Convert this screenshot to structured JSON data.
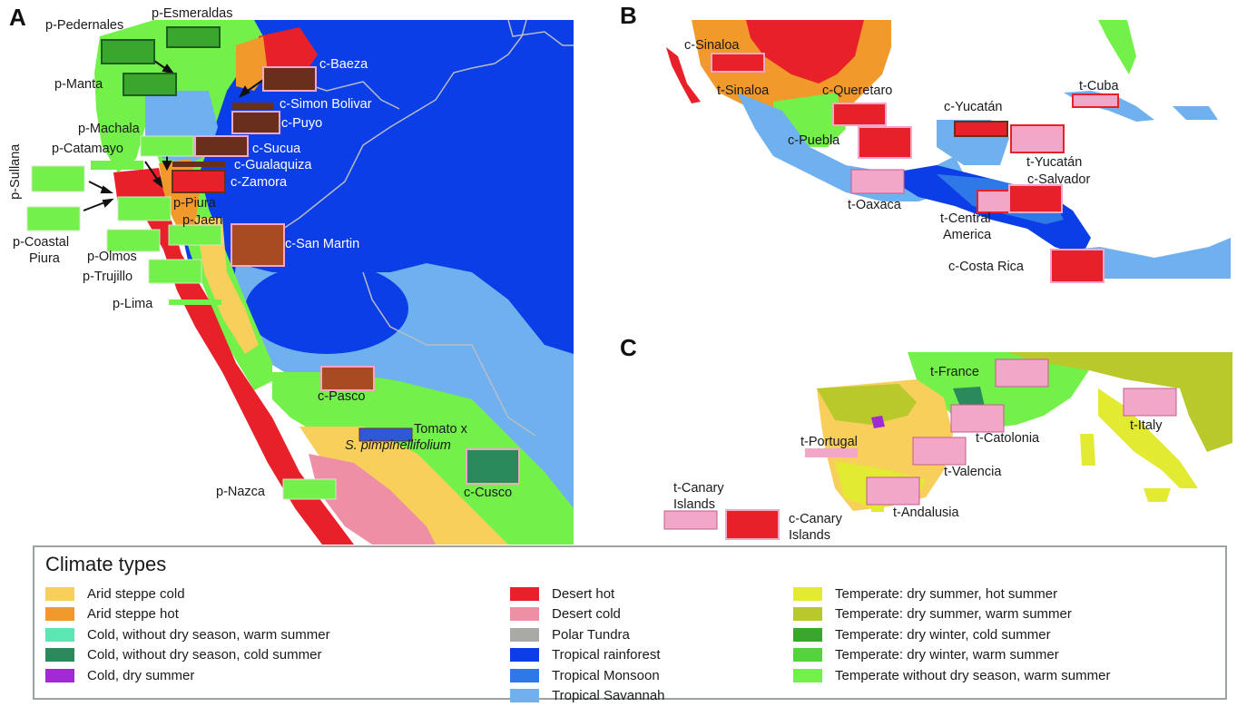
{
  "panels": {
    "a": {
      "letter": "A"
    },
    "b": {
      "letter": "B"
    },
    "c": {
      "letter": "C"
    }
  },
  "colors": {
    "arid_steppe_cold": "#f7cf5a",
    "arid_steppe_hot": "#f19a2b",
    "cold_no_dry_warm": "#5ce6b3",
    "cold_no_dry_cold": "#2a8a5c",
    "cold_dry_summer": "#a02bd6",
    "desert_hot": "#e8202a",
    "desert_cold": "#ef8fa5",
    "polar_tundra": "#a9aaa6",
    "tropical_rainforest": "#0b3ee6",
    "tropical_monsoon": "#2f78e8",
    "tropical_savannah": "#6fb1ee",
    "temp_dry_summer_hot": "#e2ea31",
    "temp_dry_summer_warm": "#b9c92c",
    "temp_dry_winter_cold": "#3aa62c",
    "temp_dry_winter_warm": "#53d43c",
    "temp_no_dry_warm": "#74f04a",
    "tomato_brown": "#6a2e1c",
    "tomato_pink": "#f2a7c8"
  },
  "map_a_labels": {
    "p_esmeraldas": "p-Esmeraldas",
    "p_pedernales": "p-Pedernales",
    "p_manta": "p-Manta",
    "c_baeza": "c-Baeza",
    "c_simon_bolivar": "c-Simon Bolivar",
    "c_puyo": "c-Puyo",
    "p_machala": "p-Machala",
    "p_catamayo": "p-Catamayo",
    "c_sucua": "c-Sucua",
    "c_gualaquiza": "c-Gualaquiza",
    "p_sullana": "p-Sullana",
    "c_zamora": "c-Zamora",
    "p_piura": "p-Piura",
    "p_jaen": "p-Jaen",
    "p_coastal_piura_1": "p-Coastal",
    "p_coastal_piura_2": "Piura",
    "p_olmos": "p-Olmos",
    "c_san_martin": "c-San Martin",
    "p_trujillo": "p-Trujillo",
    "p_lima": "p-Lima",
    "c_pasco": "c-Pasco",
    "tomato_x": "Tomato x",
    "s_pimp": "S. pimpinellifolium",
    "c_cusco": "c-Cusco",
    "p_nazca": "p-Nazca"
  },
  "map_b_labels": {
    "c_sinaloa": "c-Sinaloa",
    "t_sinaloa": "t-Sinaloa",
    "c_queretaro": "c-Queretaro",
    "c_yucatan": "c-Yucatán",
    "t_cuba": "t-Cuba",
    "c_puebla": "c-Puebla",
    "t_yucatan": "t-Yucatán",
    "c_salvador": "c-Salvador",
    "t_oaxaca": "t-Oaxaca",
    "t_central_1": "t-Central",
    "t_central_2": "America",
    "c_costa_rica": "c-Costa Rica"
  },
  "map_c_labels": {
    "t_france": "t-France",
    "t_italy": "t-Italy",
    "t_portugal": "t-Portugal",
    "t_catolonia": "t-Catolonia",
    "t_valencia": "t-Valencia",
    "t_canary_1": "t-Canary",
    "t_canary_2": "Islands",
    "c_canary_1": "c-Canary",
    "c_canary_2": "Islands",
    "t_andalusia": "t-Andalusia"
  },
  "legend": {
    "title": "Climate types",
    "col1": [
      {
        "label": "Arid steppe cold",
        "color": "#f7cf5a"
      },
      {
        "label": "Arid steppe hot",
        "color": "#f19a2b"
      },
      {
        "label": "Cold, without dry season, warm summer",
        "color": "#5ce6b3"
      },
      {
        "label": "Cold, without dry season, cold summer",
        "color": "#2a8a5c"
      },
      {
        "label": "Cold, dry summer",
        "color": "#a02bd6"
      }
    ],
    "col2": [
      {
        "label": "Desert hot",
        "color": "#e8202a"
      },
      {
        "label": "Desert cold",
        "color": "#ef8fa5"
      },
      {
        "label": "Polar Tundra",
        "color": "#a9aaa6"
      },
      {
        "label": "Tropical rainforest",
        "color": "#0b3ee6"
      },
      {
        "label": "Tropical Monsoon",
        "color": "#2f78e8"
      },
      {
        "label": "Tropical Savannah",
        "color": "#6fb1ee"
      }
    ],
    "col3": [
      {
        "label": "Temperate: dry summer, hot summer",
        "color": "#e2ea31"
      },
      {
        "label": "Temperate: dry summer, warm summer",
        "color": "#b9c92c"
      },
      {
        "label": "Temperate: dry winter, cold summer",
        "color": "#3aa62c"
      },
      {
        "label": "Temperate: dry winter, warm summer",
        "color": "#53d43c"
      },
      {
        "label": "Temperate without dry season, warm summer",
        "color": "#74f04a"
      }
    ]
  }
}
